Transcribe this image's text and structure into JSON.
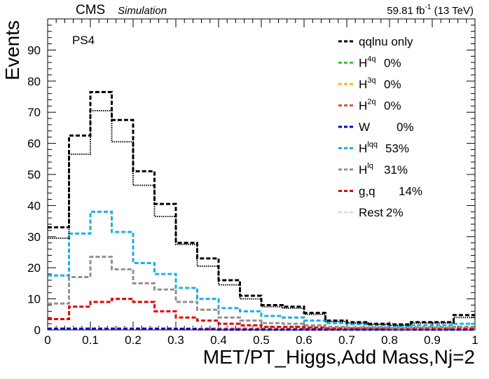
{
  "header": {
    "experiment": "CMS",
    "tag": "Simulation",
    "luminosity": "59.81 fb",
    "lumi_exp": "-1",
    "energy": "(13 TeV)",
    "region": "PS4"
  },
  "chart_data": {
    "type": "step-histogram",
    "xlabel": "MET/PT_Higgs,Add Mass,Nj=2",
    "ylabel": "Events",
    "xlim": [
      0,
      1
    ],
    "ylim": [
      0,
      100
    ],
    "x_ticks": [
      "0",
      "0.1",
      "0.2",
      "0.3",
      "0.4",
      "0.5",
      "0.6",
      "0.7",
      "0.8",
      "0.9",
      "1"
    ],
    "y_ticks": [
      "0",
      "10",
      "20",
      "30",
      "40",
      "50",
      "60",
      "70",
      "80",
      "90"
    ],
    "bin_edges": [
      0,
      0.05,
      0.1,
      0.15,
      0.2,
      0.25,
      0.3,
      0.35,
      0.4,
      0.45,
      0.5,
      0.55,
      0.6,
      0.65,
      0.7,
      0.75,
      0.8,
      0.85,
      0.9,
      0.95,
      1.0
    ],
    "legend_position": "top-right",
    "series": [
      {
        "name": "qqlnu only",
        "label_main": "qqlnu only",
        "label_sup": "",
        "label_pct": "",
        "color": "#000000",
        "style": "dashed",
        "values": [
          33,
          62.5,
          76.5,
          67.5,
          51,
          40.5,
          28,
          23,
          16,
          11,
          8,
          7.5,
          5.5,
          3,
          2.5,
          2,
          1.8,
          2.5,
          2.5,
          4.8
        ]
      },
      {
        "name": "total (dotted)",
        "label_main": "",
        "label_sup": "",
        "label_pct": "",
        "color": "#000000",
        "style": "dotted",
        "values": [
          29.5,
          56.5,
          70.5,
          60.5,
          46.5,
          36.5,
          27.5,
          20.5,
          14.5,
          10,
          7.5,
          7,
          5,
          2.7,
          2.2,
          1.8,
          1.5,
          2.2,
          2.2,
          4
        ]
      },
      {
        "name": "H4q",
        "label_main": "H",
        "label_sup": "4q",
        "label_pct": "0%",
        "color": "#33cc33",
        "style": "dashed",
        "values": [
          0.4,
          0.4,
          0.4,
          0.4,
          0.4,
          0.4,
          0.4,
          0.4,
          0.4,
          0.4,
          0.4,
          0.4,
          0.4,
          0.4,
          0.4,
          0.4,
          0.4,
          0.4,
          0.4,
          0.4
        ]
      },
      {
        "name": "H3q",
        "label_main": "H",
        "label_sup": "3q",
        "label_pct": "0%",
        "color": "#ffb700",
        "style": "dashed",
        "values": [
          0.4,
          0.4,
          0.4,
          0.4,
          0.4,
          0.4,
          0.4,
          0.4,
          0.4,
          0.4,
          0.4,
          0.4,
          0.4,
          0.4,
          0.4,
          0.4,
          0.4,
          0.4,
          0.4,
          0.4
        ]
      },
      {
        "name": "H2q",
        "label_main": "H",
        "label_sup": "2q",
        "label_pct": "0%",
        "color": "#d4563a",
        "style": "dashed",
        "values": [
          0.3,
          0.3,
          0.3,
          0.3,
          0.3,
          0.3,
          0.3,
          0.3,
          0.3,
          0.3,
          0.3,
          0.3,
          0.3,
          0.3,
          0.3,
          0.3,
          0.3,
          0.3,
          0.3,
          0.3
        ]
      },
      {
        "name": "W",
        "label_main": "W",
        "label_sup": "",
        "label_pct": "0%",
        "color": "#0000cc",
        "style": "dashed",
        "values": [
          0.4,
          0.4,
          0.4,
          0.4,
          0.4,
          0.4,
          0.3,
          0.2,
          0.1,
          0.1,
          0.1,
          0.1,
          0.1,
          0.1,
          0.1,
          0.1,
          0.1,
          0.1,
          0.1,
          0.1
        ]
      },
      {
        "name": "Hlqq",
        "label_main": "H",
        "label_sup": "lqq",
        "label_pct": "53%",
        "color": "#1ab2e0",
        "style": "dashed",
        "values": [
          17.5,
          31,
          38,
          31.5,
          21.5,
          18,
          13.5,
          10,
          7,
          6,
          4.5,
          4,
          3,
          2.2,
          1.8,
          1.5,
          1.2,
          1.5,
          1.5,
          2
        ]
      },
      {
        "name": "Hlq",
        "label_main": "H",
        "label_sup": "lq",
        "label_pct": "31%",
        "color": "#909090",
        "style": "dashed",
        "values": [
          8.5,
          17,
          23.5,
          19.5,
          15,
          13,
          9,
          6.5,
          4,
          3,
          2.2,
          2,
          1.5,
          1,
          0.8,
          0.8,
          0.6,
          0.8,
          0.8,
          1
        ]
      },
      {
        "name": "g,q",
        "label_main": "g,q",
        "label_sup": "",
        "label_pct": "14%",
        "color": "#e00000",
        "style": "dashed",
        "values": [
          3.5,
          7.5,
          9,
          10,
          9,
          6,
          4,
          3,
          2,
          1.5,
          1,
          1,
          0.8,
          0.5,
          0.5,
          0.5,
          0.3,
          0.5,
          0.5,
          0.5
        ]
      },
      {
        "name": "Rest",
        "label_main": "Rest",
        "label_sup": "",
        "label_pct": "2%",
        "color": "#dcdcdc",
        "style": "dashed",
        "values": [
          0.6,
          0.6,
          0.6,
          0.6,
          0.6,
          0.6,
          0.6,
          0.6,
          0.6,
          0.6,
          0.6,
          0.6,
          0.6,
          0.6,
          0.6,
          0.6,
          0.6,
          0.6,
          0.6,
          0.6
        ]
      }
    ]
  }
}
